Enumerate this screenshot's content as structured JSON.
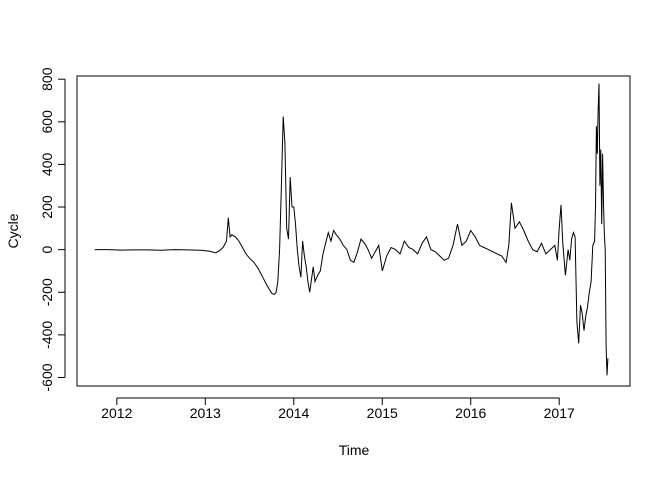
{
  "chart_data": {
    "type": "line",
    "title": "",
    "xlabel": "Time",
    "ylabel": "Cycle",
    "xlim": [
      2011.55,
      2017.8
    ],
    "ylim": [
      -640,
      815
    ],
    "x_ticks": [
      2012,
      2013,
      2014,
      2015,
      2016,
      2017
    ],
    "x_tick_labels": [
      "2012",
      "2013",
      "2014",
      "2015",
      "2016",
      "2017"
    ],
    "y_ticks": [
      -600,
      -400,
      -200,
      0,
      200,
      400,
      600,
      800
    ],
    "y_tick_labels": [
      "-600",
      "-400",
      "-200",
      "0",
      "200",
      "400",
      "600",
      "800"
    ],
    "grid": false,
    "legend": "none",
    "series": [
      {
        "color": "#000000",
        "x": [
          2011.75,
          2011.9,
          2012.05,
          2012.2,
          2012.35,
          2012.5,
          2012.65,
          2012.8,
          2012.95,
          2013.05,
          2013.12,
          2013.16,
          2013.2,
          2013.24,
          2013.26,
          2013.28,
          2013.3,
          2013.34,
          2013.38,
          2013.42,
          2013.46,
          2013.5,
          2013.55,
          2013.6,
          2013.65,
          2013.7,
          2013.75,
          2013.78,
          2013.8,
          2013.82,
          2013.84,
          2013.86,
          2013.88,
          2013.9,
          2013.92,
          2013.94,
          2013.96,
          2013.98,
          2014.0,
          2014.02,
          2014.04,
          2014.06,
          2014.08,
          2014.1,
          2014.12,
          2014.14,
          2014.16,
          2014.18,
          2014.2,
          2014.22,
          2014.24,
          2014.27,
          2014.3,
          2014.33,
          2014.36,
          2014.39,
          2014.42,
          2014.45,
          2014.48,
          2014.52,
          2014.56,
          2014.6,
          2014.64,
          2014.68,
          2014.72,
          2014.76,
          2014.8,
          2014.84,
          2014.88,
          2014.92,
          2014.96,
          2015.0,
          2015.05,
          2015.1,
          2015.15,
          2015.2,
          2015.25,
          2015.3,
          2015.35,
          2015.4,
          2015.45,
          2015.5,
          2015.55,
          2015.6,
          2015.65,
          2015.7,
          2015.75,
          2015.8,
          2015.85,
          2015.9,
          2015.95,
          2016.0,
          2016.05,
          2016.1,
          2016.15,
          2016.2,
          2016.25,
          2016.3,
          2016.35,
          2016.4,
          2016.43,
          2016.46,
          2016.5,
          2016.55,
          2016.6,
          2016.65,
          2016.7,
          2016.75,
          2016.8,
          2016.85,
          2016.9,
          2016.95,
          2016.98,
          2017.0,
          2017.02,
          2017.04,
          2017.07,
          2017.1,
          2017.12,
          2017.14,
          2017.16,
          2017.18,
          2017.2,
          2017.22,
          2017.24,
          2017.26,
          2017.28,
          2017.3,
          2017.32,
          2017.34,
          2017.36,
          2017.38,
          2017.4,
          2017.41,
          2017.42,
          2017.43,
          2017.44,
          2017.45,
          2017.46,
          2017.47,
          2017.48,
          2017.49,
          2017.5,
          2017.51,
          2017.52,
          2017.53,
          2017.54,
          2017.55
        ],
        "y": [
          0,
          0,
          -2,
          -1,
          -1,
          -3,
          0,
          -1,
          -3,
          -8,
          -15,
          -5,
          10,
          40,
          150,
          60,
          70,
          60,
          40,
          10,
          -20,
          -40,
          -60,
          -90,
          -130,
          -170,
          -205,
          -210,
          -200,
          -150,
          0,
          300,
          625,
          500,
          100,
          50,
          340,
          200,
          200,
          120,
          0,
          -80,
          -130,
          40,
          -30,
          -80,
          -150,
          -200,
          -140,
          -80,
          -150,
          -120,
          -100,
          -20,
          30,
          80,
          40,
          90,
          70,
          50,
          20,
          0,
          -50,
          -60,
          -10,
          50,
          30,
          0,
          -40,
          -10,
          20,
          -100,
          -30,
          10,
          0,
          -20,
          40,
          10,
          0,
          -20,
          30,
          60,
          0,
          -10,
          -30,
          -50,
          -40,
          20,
          120,
          20,
          40,
          90,
          60,
          20,
          10,
          0,
          -10,
          -20,
          -30,
          -60,
          20,
          220,
          100,
          130,
          90,
          40,
          0,
          -10,
          30,
          -20,
          0,
          20,
          -50,
          100,
          210,
          30,
          -120,
          0,
          -50,
          50,
          80,
          60,
          -340,
          -440,
          -260,
          -300,
          -380,
          -310,
          -270,
          -200,
          -150,
          20,
          40,
          200,
          580,
          450,
          650,
          780,
          300,
          470,
          120,
          450,
          220,
          80,
          0,
          -450,
          -590,
          -510
        ]
      }
    ]
  }
}
